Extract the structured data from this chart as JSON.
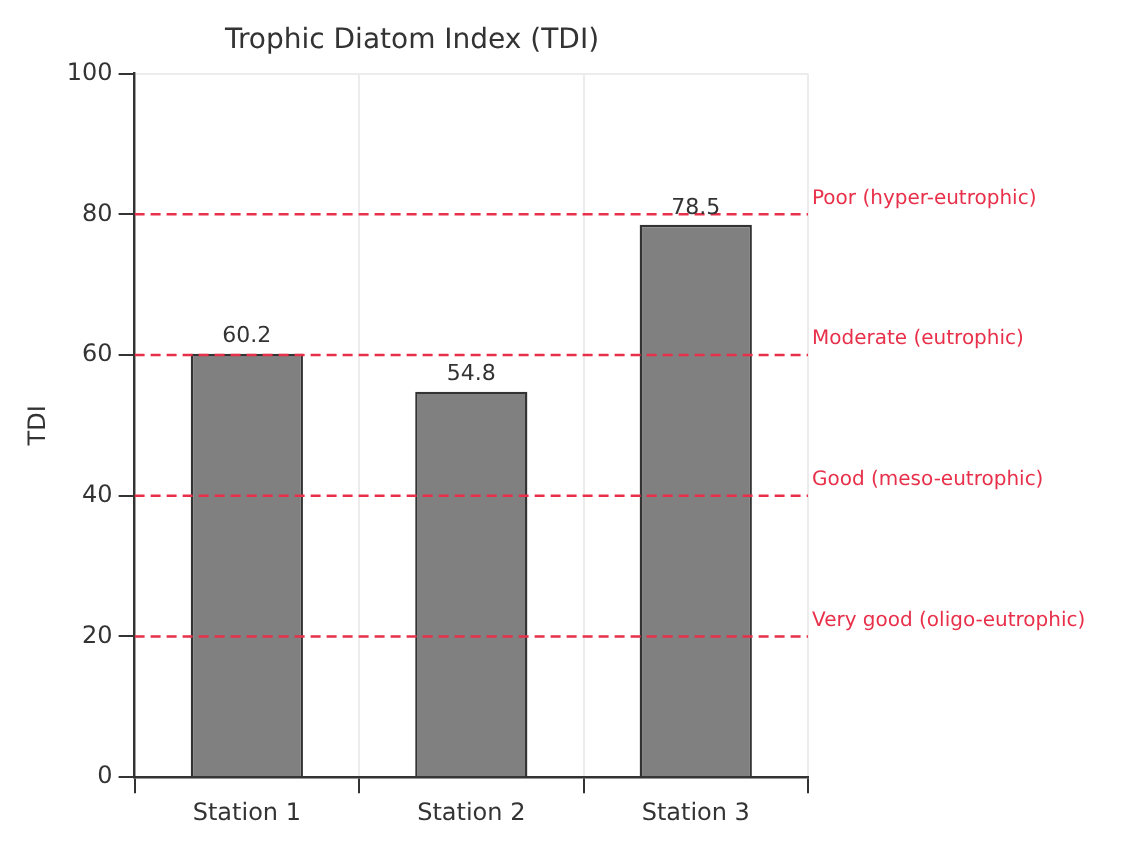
{
  "chart_data": {
    "type": "bar",
    "title": "Trophic Diatom Index (TDI)",
    "ylabel": "TDI",
    "categories": [
      "Station 1",
      "Station 2",
      "Station 3"
    ],
    "values": [
      60.2,
      54.8,
      78.5
    ],
    "color": "#808080",
    "ylim": [
      0,
      100
    ],
    "yticks": [
      0,
      20,
      40,
      60,
      80,
      100
    ],
    "grid": true,
    "data_labels": true,
    "ref_lines": [
      {
        "axis": "y",
        "value": 80,
        "label": "Poor (hyper-eutrophic)",
        "color": "#e8304a",
        "line_style": "dashed"
      },
      {
        "axis": "y",
        "value": 60,
        "label": "Moderate (eutrophic)",
        "color": "#e8304a",
        "line_style": "dashed"
      },
      {
        "axis": "y",
        "value": 40,
        "label": "Good (meso-eutrophic)",
        "color": "#e8304a",
        "line_style": "dashed"
      },
      {
        "axis": "y",
        "value": 20,
        "label": "Very good (oligo-eutrophic)",
        "color": "#e8304a",
        "line_style": "dashed"
      }
    ]
  }
}
